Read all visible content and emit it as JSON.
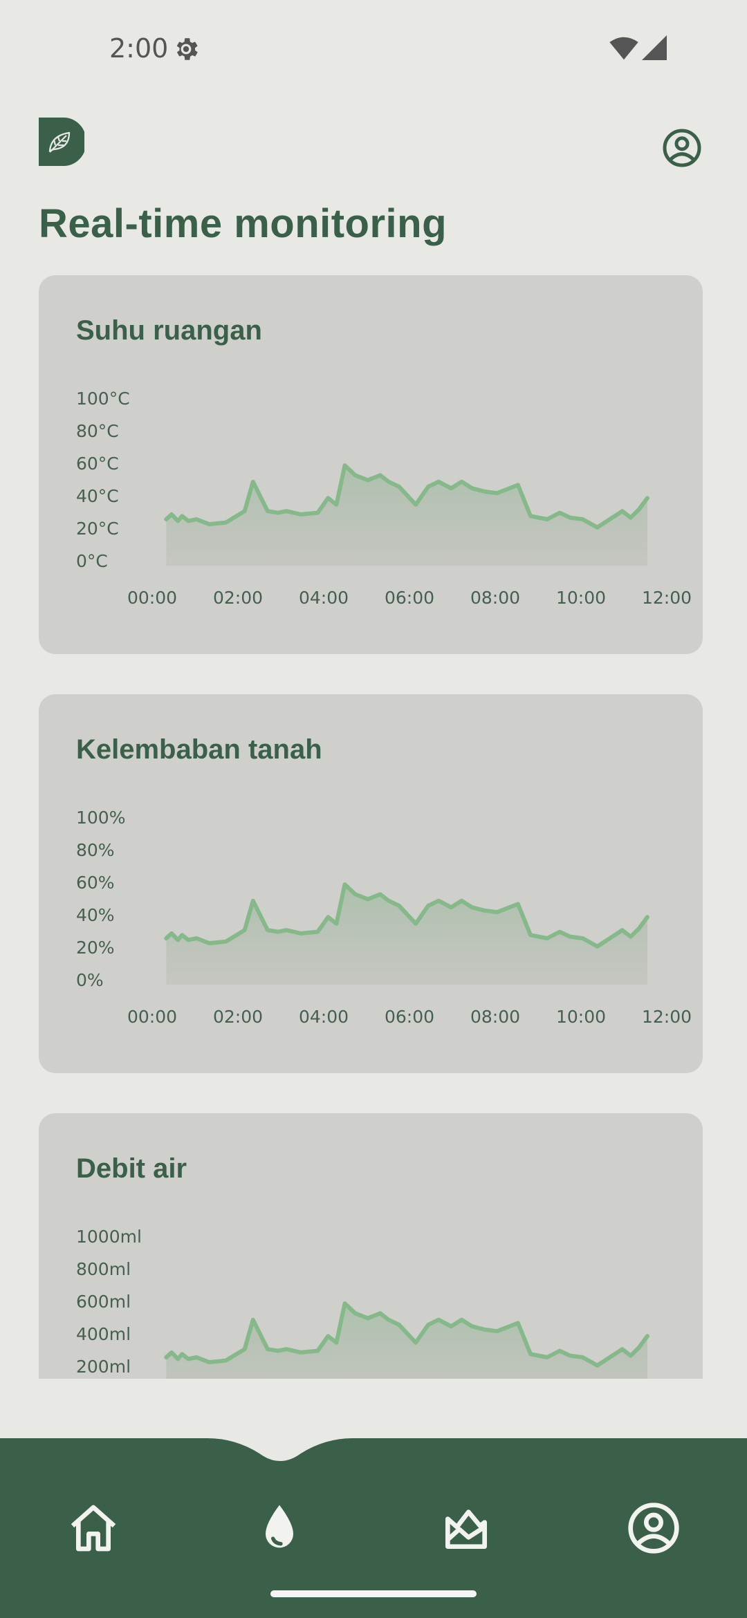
{
  "status": {
    "time": "2:00"
  },
  "page": {
    "title": "Real-time monitoring"
  },
  "colors": {
    "brand": "#3a6049",
    "line": "#86b98a",
    "card": "#cfd0cb",
    "background": "#e8e8e4"
  },
  "icons": {
    "status": [
      "gear-icon",
      "wifi-icon",
      "signal-icon"
    ],
    "header": [
      "logo-leaf-icon",
      "user-circle-icon"
    ],
    "nav": [
      "home-icon",
      "water-drop-icon",
      "chart-icon",
      "user-circle-icon"
    ]
  },
  "nav": {
    "active_index": 1
  },
  "chart_data": [
    {
      "type": "area",
      "title": "Suhu ruangan",
      "yticks": [
        "100°C",
        "80°C",
        "60°C",
        "40°C",
        "20°C",
        "0°C"
      ],
      "xticks": [
        "00:00",
        "02:00",
        "04:00",
        "06:00",
        "08:00",
        "10:00",
        "12:00"
      ],
      "ylim": [
        0,
        100
      ],
      "xlim": [
        0,
        12
      ],
      "x": [
        0.17,
        0.3,
        0.45,
        0.55,
        0.7,
        0.9,
        1.2,
        1.6,
        2.05,
        2.25,
        2.6,
        2.85,
        3.05,
        3.4,
        3.8,
        4.05,
        4.25,
        4.45,
        4.7,
        5.0,
        5.3,
        5.5,
        5.75,
        6.15,
        6.45,
        6.7,
        7.0,
        7.25,
        7.5,
        7.8,
        8.1,
        8.6,
        8.9,
        9.3,
        9.6,
        9.85,
        10.15,
        10.5,
        10.8,
        11.1,
        11.3,
        11.5,
        11.7
      ],
      "y": [
        25,
        28,
        24,
        27,
        24,
        25,
        22,
        23,
        30,
        48,
        30,
        29,
        30,
        28,
        29,
        38,
        34,
        58,
        52,
        49,
        52,
        48,
        45,
        34,
        45,
        48,
        44,
        48,
        44,
        42,
        41,
        46,
        27,
        25,
        29,
        26,
        25,
        20,
        25,
        30,
        26,
        31,
        38
      ]
    },
    {
      "type": "area",
      "title": "Kelembaban tanah",
      "yticks": [
        "100%",
        "80%",
        "60%",
        "40%",
        "20%",
        "0%"
      ],
      "xticks": [
        "00:00",
        "02:00",
        "04:00",
        "06:00",
        "08:00",
        "10:00",
        "12:00"
      ],
      "ylim": [
        0,
        100
      ],
      "xlim": [
        0,
        12
      ],
      "x": [
        0.17,
        0.3,
        0.45,
        0.55,
        0.7,
        0.9,
        1.2,
        1.6,
        2.05,
        2.25,
        2.6,
        2.85,
        3.05,
        3.4,
        3.8,
        4.05,
        4.25,
        4.45,
        4.7,
        5.0,
        5.3,
        5.5,
        5.75,
        6.15,
        6.45,
        6.7,
        7.0,
        7.25,
        7.5,
        7.8,
        8.1,
        8.6,
        8.9,
        9.3,
        9.6,
        9.85,
        10.15,
        10.5,
        10.8,
        11.1,
        11.3,
        11.5,
        11.7
      ],
      "y": [
        25,
        28,
        24,
        27,
        24,
        25,
        22,
        23,
        30,
        48,
        30,
        29,
        30,
        28,
        29,
        38,
        34,
        58,
        52,
        49,
        52,
        48,
        45,
        34,
        45,
        48,
        44,
        48,
        44,
        42,
        41,
        46,
        27,
        25,
        29,
        26,
        25,
        20,
        25,
        30,
        26,
        31,
        38
      ]
    },
    {
      "type": "area",
      "title": "Debit air",
      "yticks": [
        "1000ml",
        "800ml",
        "600ml",
        "400ml",
        "200ml"
      ],
      "xticks": [],
      "ylim": [
        0,
        1000
      ],
      "xlim": [
        0,
        12
      ],
      "x": [
        0.17,
        0.3,
        0.45,
        0.55,
        0.7,
        0.9,
        1.2,
        1.6,
        2.05,
        2.25,
        2.6,
        2.85,
        3.05,
        3.4,
        3.8,
        4.05,
        4.25,
        4.45,
        4.7,
        5.0,
        5.3,
        5.5,
        5.75,
        6.15,
        6.45,
        6.7,
        7.0,
        7.25,
        7.5,
        7.8,
        8.1,
        8.6,
        8.9,
        9.3,
        9.6,
        9.85,
        10.15,
        10.5,
        10.8,
        11.1,
        11.3,
        11.5,
        11.7
      ],
      "y": [
        250,
        280,
        240,
        270,
        240,
        250,
        220,
        230,
        300,
        480,
        300,
        290,
        300,
        280,
        290,
        380,
        340,
        580,
        520,
        490,
        520,
        480,
        450,
        340,
        450,
        480,
        440,
        480,
        440,
        420,
        410,
        460,
        270,
        250,
        290,
        260,
        250,
        200,
        250,
        300,
        260,
        310,
        380
      ]
    }
  ]
}
